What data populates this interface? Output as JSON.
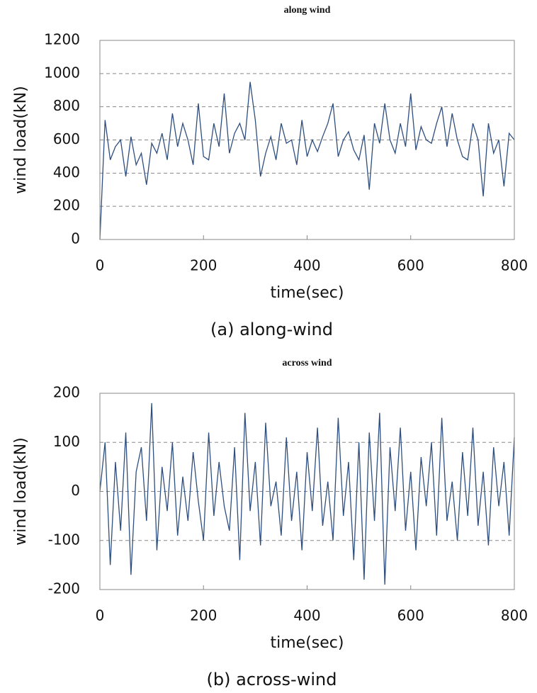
{
  "chart_data": [
    {
      "type": "line",
      "title": "along wind",
      "ylabel": "wind load(kN)",
      "xlabel": "time(sec)",
      "caption": "(a) along-wind",
      "x": [
        0,
        10,
        20,
        30,
        40,
        50,
        60,
        70,
        80,
        90,
        100,
        110,
        120,
        130,
        140,
        150,
        160,
        170,
        180,
        190,
        200,
        210,
        220,
        230,
        240,
        250,
        260,
        270,
        280,
        290,
        300,
        310,
        320,
        330,
        340,
        350,
        360,
        370,
        380,
        390,
        400,
        410,
        420,
        430,
        440,
        450,
        460,
        470,
        480,
        490,
        500,
        510,
        520,
        530,
        540,
        550,
        560,
        570,
        580,
        590,
        600,
        610,
        620,
        630,
        640,
        650,
        660,
        670,
        680,
        690,
        700,
        710,
        720,
        730,
        740,
        750,
        760,
        770,
        780,
        790,
        800
      ],
      "series": [
        {
          "name": "along wind",
          "color": "#2e4e7e",
          "values": [
            0,
            720,
            480,
            560,
            600,
            380,
            620,
            450,
            520,
            330,
            580,
            520,
            640,
            480,
            760,
            560,
            700,
            600,
            450,
            820,
            500,
            480,
            700,
            560,
            880,
            520,
            640,
            700,
            600,
            950,
            720,
            380,
            520,
            620,
            480,
            700,
            580,
            600,
            450,
            720,
            500,
            600,
            530,
            620,
            700,
            820,
            500,
            600,
            650,
            540,
            480,
            630,
            300,
            700,
            580,
            820,
            600,
            520,
            700,
            560,
            880,
            540,
            680,
            600,
            580,
            700,
            800,
            560,
            760,
            600,
            500,
            480,
            700,
            600,
            260,
            700,
            520,
            600,
            320,
            640,
            600
          ]
        }
      ],
      "xlim": [
        0,
        800
      ],
      "xticks": [
        0,
        200,
        400,
        600,
        800
      ],
      "ylim": [
        0,
        1200
      ],
      "yticks": [
        0,
        200,
        400,
        600,
        800,
        1000,
        1200
      ],
      "grid": true
    },
    {
      "type": "line",
      "title": "across wind",
      "ylabel": "wind load(kN)",
      "xlabel": "time(sec)",
      "caption": "(b) across-wind",
      "x": [
        0,
        10,
        20,
        30,
        40,
        50,
        60,
        70,
        80,
        90,
        100,
        110,
        120,
        130,
        140,
        150,
        160,
        170,
        180,
        190,
        200,
        210,
        220,
        230,
        240,
        250,
        260,
        270,
        280,
        290,
        300,
        310,
        320,
        330,
        340,
        350,
        360,
        370,
        380,
        390,
        400,
        410,
        420,
        430,
        440,
        450,
        460,
        470,
        480,
        490,
        500,
        510,
        520,
        530,
        540,
        550,
        560,
        570,
        580,
        590,
        600,
        610,
        620,
        630,
        640,
        650,
        660,
        670,
        680,
        690,
        700,
        710,
        720,
        730,
        740,
        750,
        760,
        770,
        780,
        790,
        800
      ],
      "series": [
        {
          "name": "across wind",
          "color": "#2e4e7e",
          "values": [
            0,
            100,
            -150,
            60,
            -80,
            120,
            -170,
            40,
            90,
            -60,
            180,
            -120,
            50,
            -40,
            100,
            -90,
            30,
            -60,
            80,
            -20,
            -100,
            120,
            -50,
            60,
            -30,
            -80,
            90,
            -140,
            160,
            -40,
            60,
            -110,
            140,
            -30,
            20,
            -90,
            110,
            -60,
            40,
            -120,
            80,
            -40,
            130,
            -70,
            20,
            -100,
            150,
            -50,
            60,
            -140,
            100,
            -180,
            120,
            -60,
            160,
            -190,
            90,
            -40,
            130,
            -80,
            40,
            -120,
            70,
            -30,
            100,
            -90,
            150,
            -60,
            20,
            -100,
            80,
            -50,
            130,
            -70,
            40,
            -110,
            90,
            -30,
            60,
            -90,
            110
          ]
        }
      ],
      "xlim": [
        0,
        800
      ],
      "xticks": [
        0,
        200,
        400,
        600,
        800
      ],
      "ylim": [
        -200,
        200
      ],
      "yticks": [
        -200,
        -100,
        0,
        100,
        200
      ],
      "grid": true
    }
  ]
}
